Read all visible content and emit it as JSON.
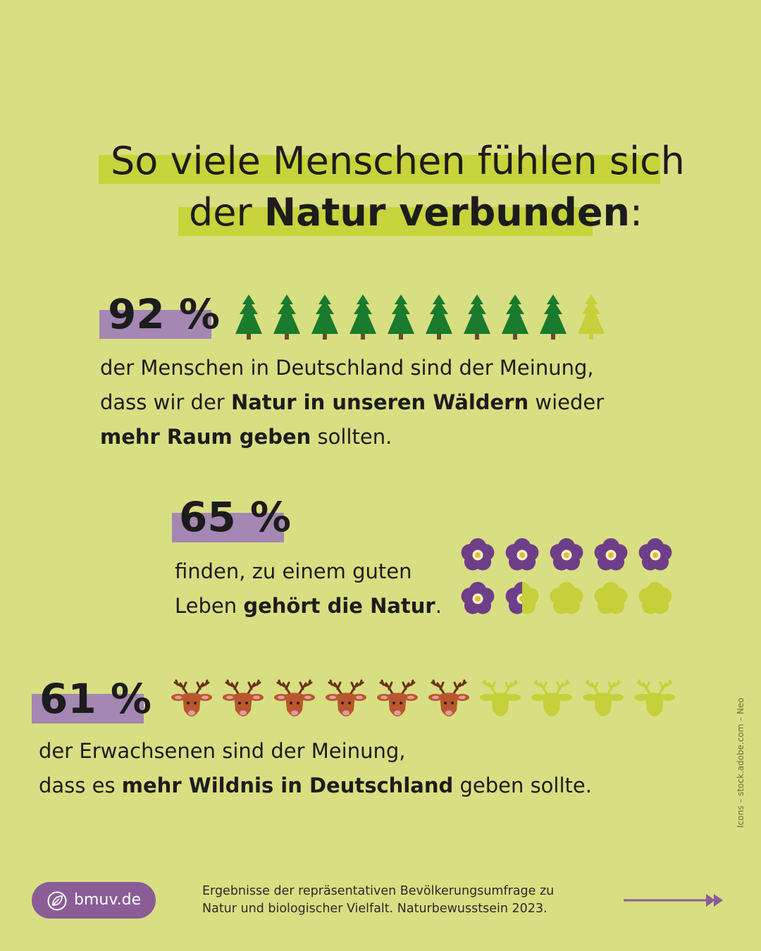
{
  "title": {
    "line1": "So viele Menschen fühlen sich",
    "line2_prefix": "der ",
    "line2_bold": "Natur verbunden",
    "line2_suffix": ":"
  },
  "stat_forest": {
    "percent_label": "92 %",
    "line1": "der Menschen in Deutschland sind der Meinung,",
    "line2_prefix": "dass wir der ",
    "line2_bold": "Natur in unseren Wäldern",
    "line2_suffix": " wieder",
    "line3_bold": "mehr Raum geben",
    "line3_suffix": " sollten."
  },
  "stat_life": {
    "percent_label": "65 %",
    "line1": "finden, zu einem guten",
    "line2_prefix": "Leben ",
    "line2_bold": "gehört die Natur",
    "line2_suffix": "."
  },
  "stat_wild": {
    "percent_label": "61 %",
    "line1": "der Erwachsenen sind der Meinung,",
    "line2_prefix": "dass es ",
    "line2_bold": "mehr Wildnis in Deutschland",
    "line2_suffix": " geben sollte."
  },
  "chart_data": [
    {
      "type": "pictogram",
      "icon": "tree-icon",
      "value": 92,
      "icons_total": 10,
      "filled_color": "#1a7a2e",
      "empty_color": "#c5d03a"
    },
    {
      "type": "pictogram",
      "icon": "flower-icon",
      "value": 65,
      "icons_total": 10,
      "filled_color": "#6e3e89",
      "empty_color": "#c5d03a"
    },
    {
      "type": "pictogram",
      "icon": "deer-icon",
      "value": 61,
      "icons_total": 10,
      "filled_color": "#b8572f",
      "empty_color": "#c5d03a"
    }
  ],
  "footer": {
    "brand": "bmuv.de",
    "source_line1": "Ergebnisse der repräsentativen Bevölkerungsumfrage zu",
    "source_line2": "Natur und biologischer Vielfalt. Naturbewusstsein 2023."
  },
  "credit": "Icons – stock.adobe.com – Neo",
  "colors": {
    "background": "#d8df82",
    "highlight": "#c7d43b",
    "percent_box": "#a487b2",
    "accent": "#8a5d97"
  }
}
